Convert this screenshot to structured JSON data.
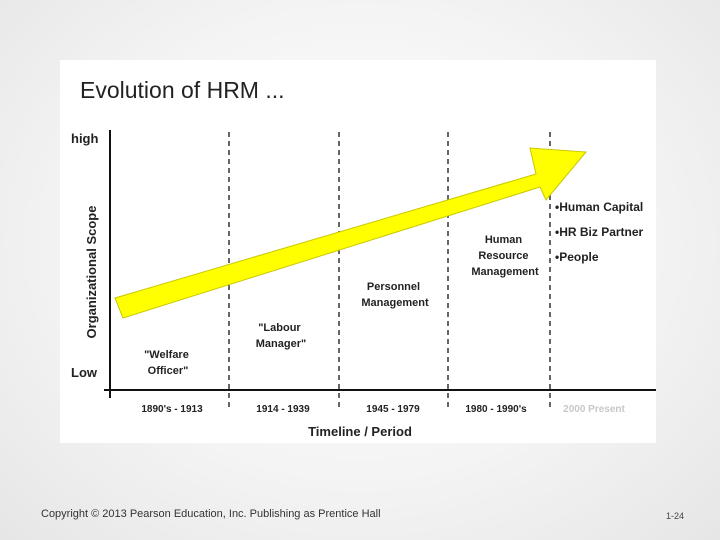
{
  "slide": {
    "title": "Evolution of HRM ...",
    "axis": {
      "y_label": "Organizational Scope",
      "y_high": "high",
      "y_low": "Low",
      "x_label": "Timeline / Period"
    },
    "periods": [
      "1890's - 1913",
      "1914 - 1939",
      "1945 - 1979",
      "1980 - 1990's",
      "2000 Present"
    ],
    "stages": [
      {
        "lines": [
          "\"Welfare",
          "Officer\""
        ]
      },
      {
        "lines": [
          "\"Labour",
          "Manager\""
        ]
      },
      {
        "lines": [
          "Personnel",
          "Management"
        ]
      },
      {
        "lines": [
          "Human",
          "Resource",
          "Management"
        ]
      }
    ],
    "current_roles": [
      "•Human Capital",
      "•HR Biz Partner",
      "•People"
    ],
    "arrow_color": "#ffff00"
  },
  "footer": {
    "copyright": "Copyright © 2013 Pearson Education, Inc. Publishing as Prentice Hall",
    "page_number": "1-24"
  }
}
